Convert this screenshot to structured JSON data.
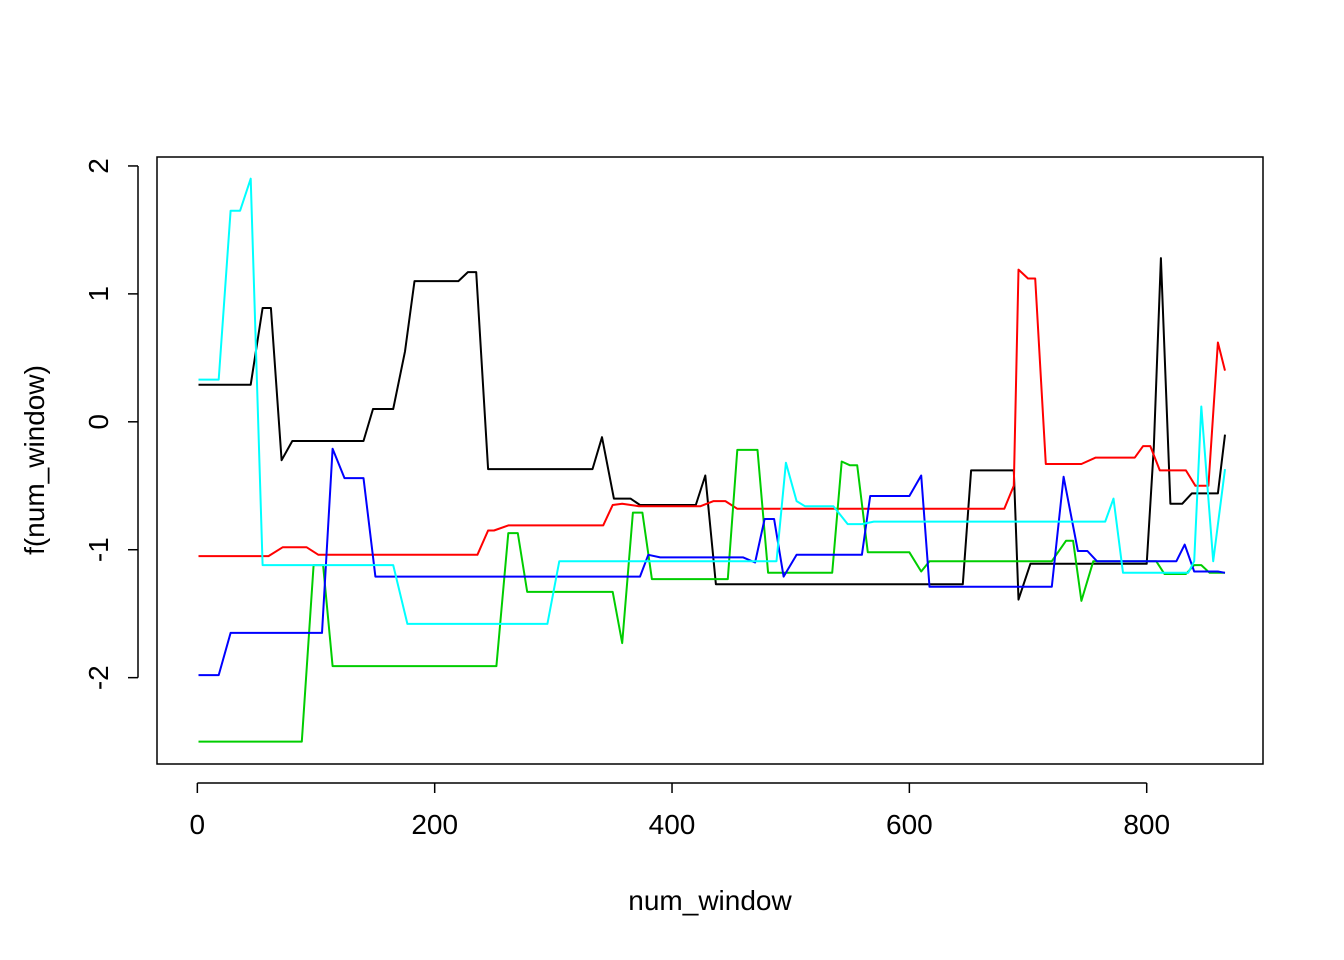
{
  "chart_data": {
    "type": "line",
    "title": "",
    "xlabel": "num_window",
    "ylabel": "f(num_window)",
    "xlim": [
      -34,
      898
    ],
    "ylim": [
      -2.675,
      2.07
    ],
    "x_ticks": [
      0,
      200,
      400,
      600,
      800
    ],
    "y_ticks": [
      -2,
      -1,
      0,
      1,
      2
    ],
    "grid": false,
    "legend": "none",
    "series": [
      {
        "color": "#000000",
        "points": [
          [
            1,
            0.29
          ],
          [
            45,
            0.29
          ],
          [
            55,
            0.89
          ],
          [
            62,
            0.89
          ],
          [
            71,
            -0.3
          ],
          [
            80,
            -0.15
          ],
          [
            140,
            -0.15
          ],
          [
            148,
            0.1
          ],
          [
            165,
            0.1
          ],
          [
            175,
            0.55
          ],
          [
            183,
            1.1
          ],
          [
            220,
            1.1
          ],
          [
            228,
            1.17
          ],
          [
            235,
            1.17
          ],
          [
            245,
            -0.37
          ],
          [
            333,
            -0.37
          ],
          [
            341,
            -0.12
          ],
          [
            351,
            -0.6
          ],
          [
            365,
            -0.6
          ],
          [
            373,
            -0.65
          ],
          [
            420,
            -0.65
          ],
          [
            428,
            -0.42
          ],
          [
            437,
            -1.27
          ],
          [
            505,
            -1.27
          ],
          [
            645,
            -1.27
          ],
          [
            652,
            -0.38
          ],
          [
            688,
            -0.38
          ],
          [
            692,
            -1.39
          ],
          [
            702,
            -1.11
          ],
          [
            800,
            -1.11
          ],
          [
            806,
            -0.2
          ],
          [
            812,
            1.28
          ],
          [
            820,
            -0.64
          ],
          [
            830,
            -0.64
          ],
          [
            838,
            -0.56
          ],
          [
            860,
            -0.56
          ],
          [
            866,
            -0.1
          ]
        ]
      },
      {
        "color": "#ff0000",
        "points": [
          [
            1,
            -1.05
          ],
          [
            60,
            -1.05
          ],
          [
            72,
            -0.98
          ],
          [
            92,
            -0.98
          ],
          [
            102,
            -1.04
          ],
          [
            236,
            -1.04
          ],
          [
            245,
            -0.85
          ],
          [
            250,
            -0.85
          ],
          [
            262,
            -0.81
          ],
          [
            342,
            -0.81
          ],
          [
            350,
            -0.65
          ],
          [
            358,
            -0.64
          ],
          [
            372,
            -0.66
          ],
          [
            424,
            -0.66
          ],
          [
            435,
            -0.62
          ],
          [
            445,
            -0.62
          ],
          [
            455,
            -0.68
          ],
          [
            680,
            -0.68
          ],
          [
            688,
            -0.5
          ],
          [
            692,
            1.19
          ],
          [
            700,
            1.12
          ],
          [
            706,
            1.12
          ],
          [
            715,
            -0.33
          ],
          [
            745,
            -0.33
          ],
          [
            757,
            -0.28
          ],
          [
            790,
            -0.28
          ],
          [
            797,
            -0.19
          ],
          [
            803,
            -0.19
          ],
          [
            811,
            -0.38
          ],
          [
            833,
            -0.38
          ],
          [
            841,
            -0.5
          ],
          [
            852,
            -0.5
          ],
          [
            860,
            0.62
          ],
          [
            866,
            0.4
          ]
        ]
      },
      {
        "color": "#00cd00",
        "points": [
          [
            1,
            -2.5
          ],
          [
            88,
            -2.5
          ],
          [
            98,
            -1.12
          ],
          [
            106,
            -1.12
          ],
          [
            114,
            -1.91
          ],
          [
            252,
            -1.91
          ],
          [
            262,
            -0.87
          ],
          [
            270,
            -0.87
          ],
          [
            278,
            -1.33
          ],
          [
            350,
            -1.33
          ],
          [
            358,
            -1.73
          ],
          [
            367,
            -0.71
          ],
          [
            375,
            -0.71
          ],
          [
            383,
            -1.23
          ],
          [
            447,
            -1.23
          ],
          [
            455,
            -0.22
          ],
          [
            472,
            -0.22
          ],
          [
            481,
            -1.18
          ],
          [
            535,
            -1.18
          ],
          [
            543,
            -0.31
          ],
          [
            550,
            -0.34
          ],
          [
            556,
            -0.34
          ],
          [
            565,
            -1.02
          ],
          [
            600,
            -1.02
          ],
          [
            610,
            -1.17
          ],
          [
            617,
            -1.09
          ],
          [
            720,
            -1.09
          ],
          [
            732,
            -0.93
          ],
          [
            738,
            -0.93
          ],
          [
            745,
            -1.4
          ],
          [
            755,
            -1.09
          ],
          [
            808,
            -1.09
          ],
          [
            815,
            -1.19
          ],
          [
            833,
            -1.19
          ],
          [
            840,
            -1.12
          ],
          [
            846,
            -1.12
          ],
          [
            853,
            -1.18
          ],
          [
            866,
            -1.18
          ]
        ]
      },
      {
        "color": "#0000ff",
        "points": [
          [
            1,
            -1.98
          ],
          [
            18,
            -1.98
          ],
          [
            28,
            -1.65
          ],
          [
            105,
            -1.65
          ],
          [
            114,
            -0.21
          ],
          [
            124,
            -0.44
          ],
          [
            140,
            -0.44
          ],
          [
            150,
            -1.21
          ],
          [
            365,
            -1.21
          ],
          [
            373,
            -1.21
          ],
          [
            380,
            -1.04
          ],
          [
            390,
            -1.06
          ],
          [
            460,
            -1.06
          ],
          [
            470,
            -1.1
          ],
          [
            478,
            -0.76
          ],
          [
            486,
            -0.76
          ],
          [
            494,
            -1.21
          ],
          [
            505,
            -1.04
          ],
          [
            560,
            -1.04
          ],
          [
            567,
            -0.58
          ],
          [
            600,
            -0.58
          ],
          [
            610,
            -0.42
          ],
          [
            617,
            -1.29
          ],
          [
            720,
            -1.29
          ],
          [
            730,
            -0.43
          ],
          [
            742,
            -1.01
          ],
          [
            750,
            -1.01
          ],
          [
            758,
            -1.09
          ],
          [
            825,
            -1.09
          ],
          [
            832,
            -0.96
          ],
          [
            840,
            -1.17
          ],
          [
            860,
            -1.17
          ],
          [
            866,
            -1.18
          ]
        ]
      },
      {
        "color": "#00ffff",
        "points": [
          [
            1,
            0.33
          ],
          [
            18,
            0.33
          ],
          [
            28,
            1.65
          ],
          [
            36,
            1.65
          ],
          [
            45,
            1.9
          ],
          [
            55,
            -1.12
          ],
          [
            165,
            -1.12
          ],
          [
            177,
            -1.58
          ],
          [
            295,
            -1.58
          ],
          [
            305,
            -1.09
          ],
          [
            455,
            -1.09
          ],
          [
            470,
            -1.09
          ],
          [
            480,
            -1.09
          ],
          [
            488,
            -1.09
          ],
          [
            496,
            -0.32
          ],
          [
            505,
            -0.62
          ],
          [
            512,
            -0.66
          ],
          [
            536,
            -0.66
          ],
          [
            548,
            -0.8
          ],
          [
            560,
            -0.8
          ],
          [
            570,
            -0.78
          ],
          [
            765,
            -0.78
          ],
          [
            772,
            -0.6
          ],
          [
            780,
            -1.18
          ],
          [
            795,
            -1.18
          ],
          [
            800,
            -1.18
          ],
          [
            820,
            -1.18
          ],
          [
            835,
            -1.18
          ],
          [
            840,
            -1.09
          ],
          [
            846,
            0.12
          ],
          [
            856,
            -1.09
          ],
          [
            866,
            -0.37
          ]
        ]
      }
    ]
  }
}
